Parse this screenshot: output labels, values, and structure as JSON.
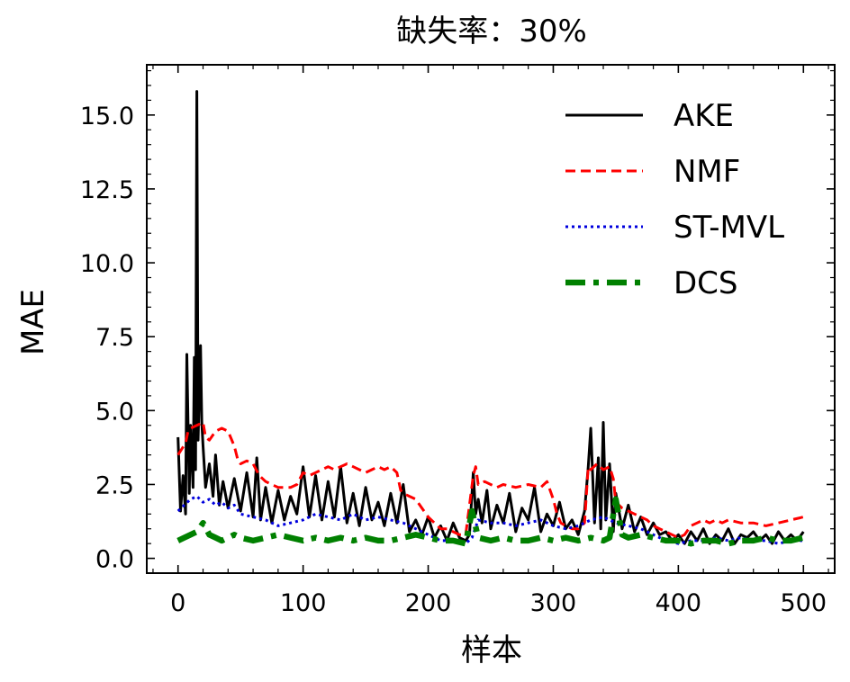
{
  "chart_data": {
    "type": "line",
    "title": "缺失率：30%",
    "xlabel": "样本",
    "ylabel": "MAE",
    "xlim": [
      -25,
      525
    ],
    "ylim": [
      -0.5,
      16.7
    ],
    "xticks": [
      0,
      100,
      200,
      300,
      400,
      500
    ],
    "xtick_labels": [
      "0",
      "100",
      "200",
      "300",
      "400",
      "500"
    ],
    "yticks": [
      0.0,
      2.5,
      5.0,
      7.5,
      10.0,
      12.5,
      15.0
    ],
    "ytick_labels": [
      "0.0",
      "2.5",
      "5.0",
      "7.5",
      "10.0",
      "12.5",
      "15.0"
    ],
    "grid": false,
    "legend_position": "top-right",
    "series": [
      {
        "name": "AKE",
        "color": "#000000",
        "style": "solid",
        "x": [
          0,
          2,
          4,
          6,
          7,
          9,
          10,
          12,
          13,
          14,
          15,
          16,
          18,
          19,
          20,
          22,
          25,
          28,
          30,
          33,
          36,
          40,
          45,
          50,
          55,
          60,
          63,
          66,
          70,
          75,
          80,
          85,
          90,
          95,
          100,
          105,
          110,
          115,
          120,
          125,
          130,
          135,
          140,
          145,
          150,
          155,
          160,
          165,
          170,
          175,
          180,
          185,
          190,
          195,
          200,
          205,
          210,
          215,
          220,
          225,
          230,
          233,
          236,
          238,
          240,
          243,
          247,
          250,
          255,
          260,
          265,
          270,
          275,
          280,
          285,
          290,
          295,
          300,
          305,
          310,
          315,
          320,
          325,
          328,
          330,
          333,
          336,
          338,
          340,
          342,
          345,
          348,
          350,
          355,
          360,
          365,
          370,
          375,
          380,
          385,
          390,
          395,
          400,
          405,
          410,
          415,
          420,
          425,
          430,
          435,
          440,
          445,
          450,
          455,
          460,
          465,
          470,
          475,
          480,
          485,
          490,
          495,
          500
        ],
        "y": [
          4.1,
          1.6,
          2.8,
          1.5,
          6.9,
          2.2,
          4.5,
          2.4,
          6.8,
          3.0,
          15.8,
          4.0,
          7.2,
          4.6,
          3.8,
          2.4,
          3.2,
          2.1,
          3.5,
          1.8,
          2.6,
          1.7,
          2.7,
          1.6,
          2.9,
          1.4,
          3.4,
          1.3,
          2.4,
          1.2,
          2.3,
          1.3,
          2.1,
          1.5,
          3.1,
          1.4,
          2.8,
          1.3,
          2.6,
          1.4,
          3.1,
          1.2,
          2.2,
          1.1,
          2.4,
          1.3,
          1.9,
          1.1,
          2.2,
          1.2,
          2.5,
          0.9,
          1.3,
          0.8,
          1.4,
          0.7,
          1.1,
          0.6,
          1.2,
          0.7,
          0.6,
          0.8,
          2.9,
          1.5,
          2.0,
          1.2,
          2.3,
          1.0,
          1.8,
          1.2,
          2.2,
          0.9,
          1.7,
          1.3,
          2.4,
          0.9,
          1.5,
          1.1,
          1.9,
          1.0,
          1.3,
          0.8,
          1.6,
          3.1,
          4.4,
          1.2,
          3.4,
          1.0,
          4.6,
          1.3,
          3.2,
          0.9,
          2.2,
          1.0,
          1.8,
          0.9,
          1.4,
          0.8,
          1.2,
          0.8,
          0.9,
          0.6,
          0.8,
          0.5,
          0.9,
          0.6,
          1.0,
          0.5,
          0.8,
          0.6,
          1.0,
          0.5,
          0.8,
          0.7,
          0.9,
          0.6,
          0.8,
          0.5,
          0.9,
          0.6,
          0.8,
          0.6,
          0.9
        ]
      },
      {
        "name": "NMF",
        "color": "#ff0000",
        "style": "dashed",
        "x": [
          0,
          3,
          6,
          8,
          10,
          15,
          20,
          22,
          25,
          30,
          35,
          40,
          45,
          48,
          50,
          55,
          60,
          65,
          70,
          75,
          80,
          85,
          90,
          95,
          100,
          105,
          110,
          115,
          120,
          125,
          130,
          135,
          140,
          145,
          150,
          155,
          160,
          165,
          170,
          175,
          178,
          180,
          185,
          190,
          195,
          200,
          205,
          210,
          215,
          220,
          225,
          230,
          233,
          236,
          238,
          240,
          245,
          250,
          255,
          260,
          270,
          280,
          290,
          295,
          300,
          303,
          306,
          310,
          315,
          320,
          325,
          328,
          330,
          335,
          340,
          345,
          348,
          350,
          355,
          360,
          365,
          370,
          375,
          380,
          385,
          390,
          395,
          400,
          405,
          410,
          415,
          420,
          425,
          430,
          435,
          440,
          450,
          460,
          470,
          480,
          490,
          500
        ],
        "y": [
          3.5,
          3.7,
          3.9,
          4.3,
          4.4,
          4.5,
          4.6,
          4.1,
          4.0,
          4.3,
          4.4,
          4.3,
          3.8,
          3.3,
          3.2,
          3.3,
          3.2,
          2.8,
          2.6,
          2.5,
          2.4,
          2.4,
          2.4,
          2.5,
          2.9,
          2.8,
          2.9,
          3.0,
          3.1,
          3.0,
          3.1,
          3.2,
          3.1,
          3.0,
          2.9,
          3.0,
          3.1,
          3.0,
          3.1,
          2.9,
          2.3,
          2.2,
          2.1,
          2.0,
          1.7,
          1.4,
          1.2,
          1.0,
          1.0,
          0.9,
          0.8,
          0.8,
          1.8,
          2.8,
          3.1,
          2.5,
          2.6,
          2.5,
          2.4,
          2.5,
          2.4,
          2.5,
          2.4,
          2.6,
          2.0,
          1.5,
          1.2,
          1.1,
          1.0,
          1.0,
          1.2,
          3.1,
          3.0,
          3.2,
          3.0,
          3.1,
          2.7,
          1.9,
          1.7,
          1.6,
          1.5,
          1.4,
          1.3,
          1.1,
          1.0,
          0.9,
          0.8,
          0.7,
          0.8,
          1.1,
          1.2,
          1.3,
          1.2,
          1.3,
          1.2,
          1.3,
          1.2,
          1.2,
          1.1,
          1.2,
          1.3,
          1.4
        ]
      },
      {
        "name": "ST-MVL",
        "color": "#0000dd",
        "style": "dotted",
        "x": [
          0,
          5,
          10,
          15,
          20,
          25,
          30,
          35,
          40,
          45,
          50,
          60,
          70,
          80,
          90,
          100,
          110,
          120,
          130,
          140,
          150,
          160,
          170,
          180,
          190,
          200,
          210,
          220,
          230,
          235,
          240,
          250,
          260,
          270,
          280,
          290,
          300,
          310,
          320,
          330,
          340,
          350,
          360,
          370,
          380,
          390,
          400,
          410,
          420,
          430,
          440,
          450,
          460,
          470,
          480,
          490,
          500
        ],
        "y": [
          1.6,
          1.8,
          2.0,
          2.1,
          1.9,
          2.0,
          1.8,
          1.9,
          1.7,
          1.8,
          1.5,
          1.4,
          1.3,
          1.1,
          1.2,
          1.3,
          1.5,
          1.4,
          1.3,
          1.5,
          1.3,
          1.4,
          1.3,
          1.2,
          1.0,
          0.8,
          0.6,
          0.6,
          0.5,
          0.7,
          1.3,
          1.2,
          1.2,
          1.1,
          1.2,
          1.3,
          1.1,
          1.0,
          1.1,
          1.3,
          1.4,
          1.2,
          1.1,
          1.0,
          0.8,
          0.6,
          0.5,
          0.6,
          0.6,
          0.7,
          0.6,
          0.7,
          0.6,
          0.6,
          0.5,
          0.6,
          0.6
        ]
      },
      {
        "name": "DCS",
        "color": "#008000",
        "style": "dashdot",
        "x": [
          0,
          5,
          10,
          15,
          20,
          25,
          30,
          35,
          40,
          45,
          50,
          60,
          70,
          80,
          90,
          100,
          110,
          120,
          130,
          140,
          150,
          160,
          170,
          180,
          190,
          200,
          210,
          220,
          230,
          235,
          240,
          250,
          260,
          270,
          280,
          290,
          300,
          310,
          320,
          330,
          340,
          345,
          350,
          355,
          360,
          370,
          380,
          390,
          400,
          410,
          420,
          430,
          440,
          450,
          460,
          470,
          480,
          490,
          500
        ],
        "y": [
          0.6,
          0.7,
          0.8,
          0.9,
          1.2,
          0.8,
          0.7,
          0.6,
          0.7,
          0.8,
          0.7,
          0.6,
          0.7,
          0.8,
          0.7,
          0.6,
          0.7,
          0.6,
          0.7,
          0.6,
          0.7,
          0.6,
          0.6,
          0.7,
          0.8,
          0.7,
          0.6,
          0.6,
          0.5,
          1.6,
          0.7,
          0.6,
          0.7,
          0.6,
          0.6,
          0.7,
          0.6,
          0.7,
          0.6,
          0.7,
          0.6,
          0.7,
          2.0,
          0.8,
          0.7,
          0.8,
          0.7,
          0.6,
          0.6,
          0.5,
          0.6,
          0.6,
          0.5,
          0.6,
          0.6,
          0.7,
          0.6,
          0.6,
          0.7
        ]
      }
    ]
  }
}
